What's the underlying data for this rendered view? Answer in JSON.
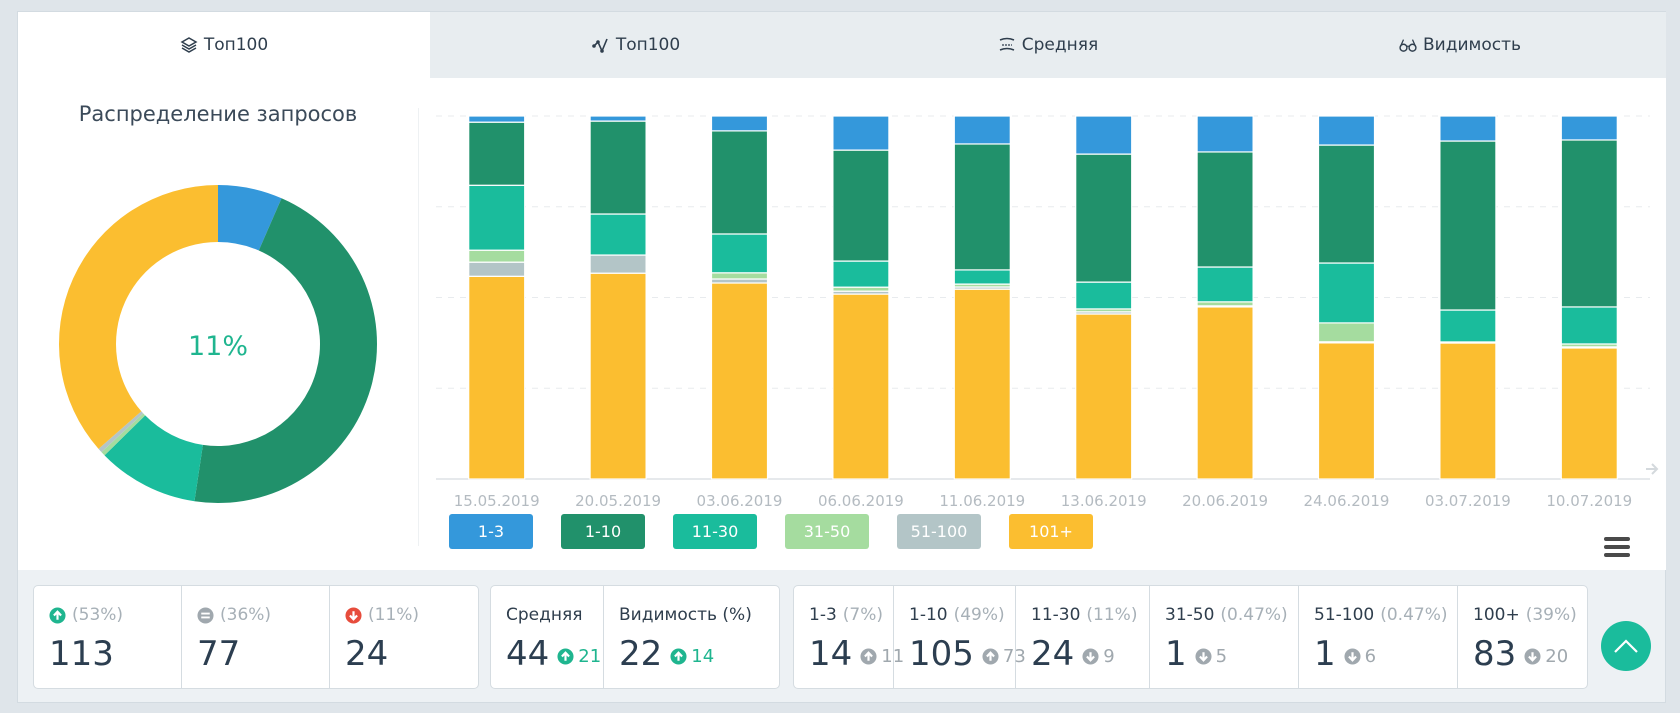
{
  "tabs": [
    {
      "label": "Топ100",
      "icon": "layers-icon",
      "active": true
    },
    {
      "label": "Топ100",
      "icon": "line-chart-icon",
      "active": false
    },
    {
      "label": "Средняя",
      "icon": "average-icon",
      "active": false
    },
    {
      "label": "Видимость",
      "icon": "glasses-icon",
      "active": false
    }
  ],
  "donut": {
    "title": "Распределение запросов",
    "center_label": "11%",
    "center_color": "#1fb58f"
  },
  "colors": {
    "1-3": "#3498db",
    "1-10": "#21916b",
    "11-30": "#1abc9c",
    "31-50": "#a5dc9f",
    "51-100": "#b3c5c7",
    "101+": "#fbbe30"
  },
  "chart_data": [
    {
      "type": "pie",
      "title": "Распределение запросов",
      "center_text": "11%",
      "labels": [
        "1-3",
        "1-10",
        "11-30",
        "31-50",
        "51-100",
        "101+"
      ],
      "values": [
        7,
        49,
        11,
        0.47,
        0.47,
        39
      ],
      "start": "top",
      "direction": "clockwise"
    },
    {
      "type": "bar",
      "stacked": "percent",
      "categories": [
        "15.05.2019",
        "20.05.2019",
        "03.06.2019",
        "06.06.2019",
        "11.06.2019",
        "13.06.2019",
        "20.06.2019",
        "24.06.2019",
        "03.07.2019",
        "10.07.2019"
      ],
      "series": [
        {
          "name": "101+",
          "values": [
            55.9,
            56.7,
            54.0,
            51.0,
            52.3,
            45.5,
            47.4,
            37.5,
            37.5,
            36.1
          ]
        },
        {
          "name": "51-100",
          "values": [
            3.9,
            5.0,
            1.1,
            0.8,
            0.6,
            0.6,
            0.3,
            0.3,
            0,
            0.3
          ]
        },
        {
          "name": "31-50",
          "values": [
            3.3,
            0,
            1.7,
            1.1,
            0.8,
            0.8,
            1.1,
            5.2,
            0.3,
            0.8
          ]
        },
        {
          "name": "11-30",
          "values": [
            17.9,
            11.3,
            10.7,
            7.2,
            3.9,
            7.4,
            9.6,
            16.5,
            8.8,
            10.2
          ]
        },
        {
          "name": "1-10",
          "values": [
            17.4,
            25.6,
            28.4,
            30.6,
            34.7,
            35.3,
            31.7,
            32.5,
            46.6,
            46.0
          ]
        },
        {
          "name": "1-3",
          "values": [
            1.7,
            1.4,
            4.1,
            9.4,
            7.7,
            10.5,
            9.9,
            8.0,
            6.9,
            6.6
          ]
        }
      ],
      "ylim": [
        0,
        100
      ],
      "grid": true,
      "legend": "bottom-left",
      "legend_entries": [
        "1-3",
        "1-10",
        "11-30",
        "31-50",
        "51-100",
        "101+"
      ],
      "xlabel": "",
      "ylabel": ""
    }
  ],
  "summary": {
    "movement": [
      {
        "icon": "arrow-up-circle-icon",
        "icon_color": "#1fb58f",
        "pct": "(53%)",
        "value": "113"
      },
      {
        "icon": "minus-circle-icon",
        "icon_color": "#a0a8ae",
        "pct": "(36%)",
        "value": "77"
      },
      {
        "icon": "arrow-down-circle-icon",
        "icon_color": "#e74c3c",
        "pct": "(11%)",
        "value": "24"
      }
    ],
    "averages": [
      {
        "label": "Средняя",
        "value": "44",
        "delta": "21",
        "direction": "up"
      },
      {
        "label": "Видимость (%)",
        "value": "22",
        "delta": "14",
        "direction": "up"
      }
    ],
    "ranges": [
      {
        "label": "1-3",
        "pct": "(7%)",
        "value": "14",
        "delta": "11",
        "direction": "up"
      },
      {
        "label": "1-10",
        "pct": "(49%)",
        "value": "105",
        "delta": "73",
        "direction": "up"
      },
      {
        "label": "11-30",
        "pct": "(11%)",
        "value": "24",
        "delta": "9",
        "direction": "down"
      },
      {
        "label": "31-50",
        "pct": "(0.47%)",
        "value": "1",
        "delta": "5",
        "direction": "down"
      },
      {
        "label": "51-100",
        "pct": "(0.47%)",
        "value": "1",
        "delta": "6",
        "direction": "down"
      },
      {
        "label": "100+",
        "pct": "(39%)",
        "value": "83",
        "delta": "20",
        "direction": "down"
      }
    ]
  },
  "icons": {
    "scroll_top": "chevron-up-icon",
    "menu": "hamburger-menu-icon",
    "scroll_right": "arrow-right-icon"
  }
}
